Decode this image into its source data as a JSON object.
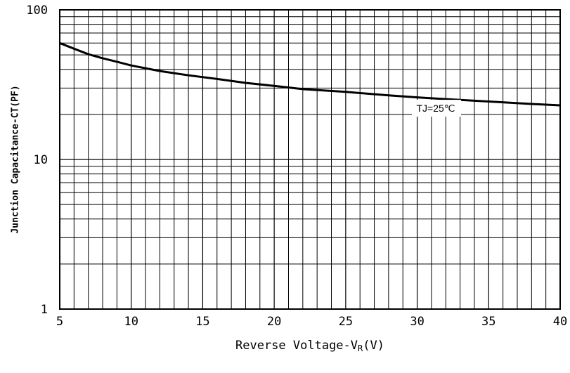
{
  "chart_data": {
    "type": "line",
    "xlabel": "Reverse Voltage-V",
    "xlabel_sub": "R",
    "xlabel_unit": "(V)",
    "ylabel": "Junction Capacitance-CT(PF)",
    "xlim": [
      5,
      40
    ],
    "ylim": [
      1,
      100
    ],
    "yscale": "log",
    "grid": true,
    "x_ticks": [
      5,
      10,
      15,
      20,
      25,
      30,
      35,
      40
    ],
    "x_tick_labels": [
      "5",
      "10",
      "15",
      "20",
      "25",
      "30",
      "35",
      "40"
    ],
    "y_ticks": [
      1,
      10,
      100
    ],
    "y_tick_labels": [
      "1",
      "10",
      "100"
    ],
    "series": [
      {
        "x": [
          5,
          6,
          7,
          8,
          9,
          10,
          12,
          14,
          16,
          18,
          20,
          22,
          25,
          28,
          30,
          32,
          35,
          38,
          40
        ],
        "y": [
          60,
          55,
          50.5,
          47.5,
          45,
          42.5,
          39,
          36.5,
          34.5,
          32.5,
          31,
          29.5,
          28.3,
          26.8,
          26,
          25.3,
          24.4,
          23.5,
          23
        ]
      }
    ],
    "annotations": [
      {
        "text": "TJ=25℃",
        "x": 31.3,
        "y": 22
      }
    ]
  }
}
